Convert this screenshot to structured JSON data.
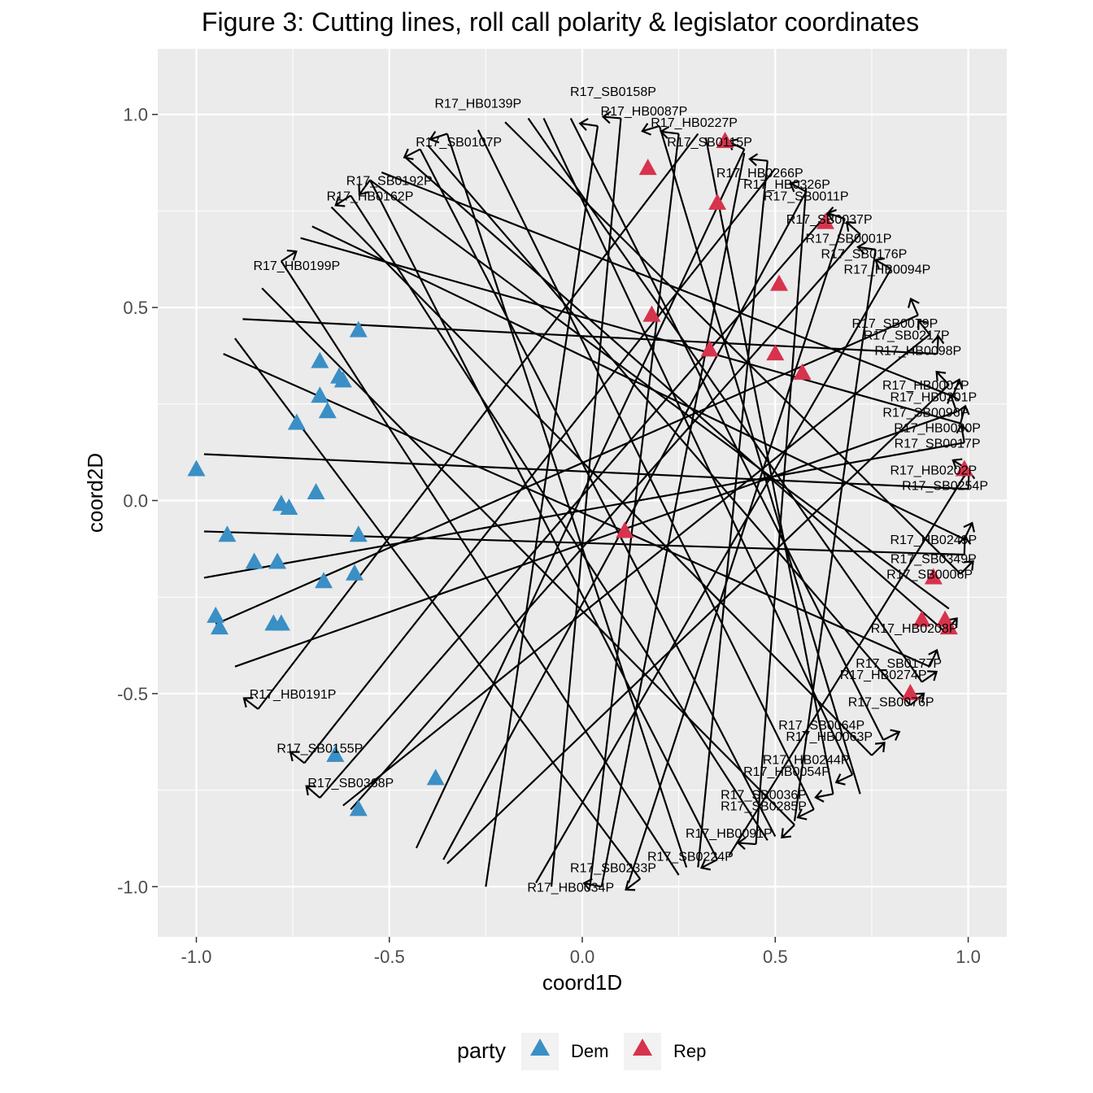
{
  "chart_data": {
    "type": "scatter",
    "title": "Figure 3: Cutting lines, roll call polarity & legislator coordinates",
    "xlabel": "coord1D",
    "ylabel": "coord2D",
    "xlim": [
      -1.1,
      1.1
    ],
    "ylim": [
      -1.13,
      1.17
    ],
    "xticks": [
      -1.0,
      -0.5,
      0.0,
      0.5,
      1.0
    ],
    "xtick_labels": [
      "-1.0",
      "-0.5",
      "0.0",
      "0.5",
      "1.0"
    ],
    "yticks": [
      -1.0,
      -0.5,
      0.0,
      0.5,
      1.0
    ],
    "ytick_labels": [
      "-1.0",
      "-0.5",
      "0.0",
      "0.5",
      "1.0"
    ],
    "grid": true,
    "legend": {
      "title": "party",
      "position": "bottom",
      "entries": [
        {
          "label": "Dem",
          "color": "#3a8fc5"
        },
        {
          "label": "Rep",
          "color": "#d7334d"
        }
      ]
    },
    "colors": {
      "panel": "#ebebeb",
      "grid": "#ffffff",
      "Dem": "#3a8fc5",
      "Rep": "#d7334d",
      "line": "#000000"
    },
    "series": [
      {
        "name": "Dem",
        "points": [
          [
            -1.0,
            0.08
          ],
          [
            -0.58,
            0.44
          ],
          [
            -0.68,
            0.36
          ],
          [
            -0.63,
            0.32
          ],
          [
            -0.62,
            0.31
          ],
          [
            -0.68,
            0.27
          ],
          [
            -0.66,
            0.23
          ],
          [
            -0.74,
            0.2
          ],
          [
            -0.69,
            0.02
          ],
          [
            -0.78,
            -0.01
          ],
          [
            -0.76,
            -0.02
          ],
          [
            -0.92,
            -0.09
          ],
          [
            -0.58,
            -0.09
          ],
          [
            -0.85,
            -0.16
          ],
          [
            -0.79,
            -0.16
          ],
          [
            -0.59,
            -0.19
          ],
          [
            -0.67,
            -0.21
          ],
          [
            -0.95,
            -0.3
          ],
          [
            -0.94,
            -0.33
          ],
          [
            -0.8,
            -0.32
          ],
          [
            -0.78,
            -0.32
          ],
          [
            -0.64,
            -0.66
          ],
          [
            -0.38,
            -0.72
          ],
          [
            -0.58,
            -0.8
          ]
        ]
      },
      {
        "name": "Rep",
        "points": [
          [
            0.37,
            0.93
          ],
          [
            0.17,
            0.86
          ],
          [
            0.35,
            0.77
          ],
          [
            0.63,
            0.72
          ],
          [
            0.51,
            0.56
          ],
          [
            0.18,
            0.48
          ],
          [
            0.33,
            0.39
          ],
          [
            0.5,
            0.38
          ],
          [
            0.57,
            0.33
          ],
          [
            0.99,
            0.08
          ],
          [
            0.11,
            -0.08
          ],
          [
            0.91,
            -0.2
          ],
          [
            0.88,
            -0.31
          ],
          [
            0.94,
            -0.31
          ],
          [
            0.95,
            -0.33
          ],
          [
            0.85,
            -0.5
          ]
        ]
      }
    ],
    "cutting_lines": [
      {
        "label": "R17_SB0158P",
        "label_at": [
          0.08,
          1.06
        ],
        "start": [
          0.04,
          0.97
        ],
        "end": [
          -0.25,
          -1.0
        ]
      },
      {
        "label": "R17_HB0139P",
        "label_at": [
          -0.27,
          1.03
        ],
        "start": [
          -0.35,
          0.95
        ],
        "end": [
          0.27,
          -0.95
        ]
      },
      {
        "label": "R17_HB0087P",
        "label_at": [
          0.16,
          1.01
        ],
        "start": [
          0.1,
          0.99
        ],
        "end": [
          -0.08,
          -1.0
        ]
      },
      {
        "label": "R17_HB0227P",
        "label_at": [
          0.29,
          0.98
        ],
        "start": [
          0.2,
          0.97
        ],
        "end": [
          0.72,
          -0.76
        ]
      },
      {
        "label": "R17_SB0107P",
        "label_at": [
          -0.32,
          0.93
        ],
        "start": [
          -0.42,
          0.91
        ],
        "end": [
          0.5,
          -0.87
        ]
      },
      {
        "label": "R17_SB0115P",
        "label_at": [
          0.33,
          0.93
        ],
        "start": [
          0.25,
          0.95
        ],
        "end": [
          0.02,
          -1.0
        ]
      },
      {
        "label": "R17_SB0192P",
        "label_at": [
          -0.5,
          0.83
        ],
        "start": [
          -0.55,
          0.83
        ],
        "end": [
          0.95,
          -0.28
        ]
      },
      {
        "label": "R17_HB0266P",
        "label_at": [
          0.46,
          0.85
        ],
        "start": [
          0.42,
          0.91
        ],
        "end": [
          -0.43,
          -0.9
        ]
      },
      {
        "label": "R17_HB0162P",
        "label_at": [
          -0.55,
          0.79
        ],
        "start": [
          -0.6,
          0.79
        ],
        "end": [
          0.48,
          -0.88
        ]
      },
      {
        "label": "R17_HB0326P",
        "label_at": [
          0.53,
          0.82
        ],
        "start": [
          0.48,
          0.88
        ],
        "end": [
          0.3,
          -0.95
        ]
      },
      {
        "label": "R17_SB0011P",
        "label_at": [
          0.58,
          0.79
        ],
        "start": [
          0.58,
          0.8
        ],
        "end": [
          -0.36,
          -0.93
        ]
      },
      {
        "label": "R17_SB0037P",
        "label_at": [
          0.64,
          0.73
        ],
        "start": [
          0.68,
          0.73
        ],
        "end": [
          0.12,
          -0.99
        ]
      },
      {
        "label": "R17_SB0001P",
        "label_at": [
          0.69,
          0.68
        ],
        "start": [
          0.72,
          0.69
        ],
        "end": [
          -0.6,
          -0.8
        ]
      },
      {
        "label": "R17_SB0176P",
        "label_at": [
          0.73,
          0.64
        ],
        "start": [
          0.76,
          0.65
        ],
        "end": [
          0.55,
          -0.83
        ]
      },
      {
        "label": "R17_HB0199P",
        "label_at": [
          -0.74,
          0.61
        ],
        "start": [
          -0.78,
          0.62
        ],
        "end": [
          0.25,
          -0.97
        ]
      },
      {
        "label": "R17_HB0094P",
        "label_at": [
          0.79,
          0.6
        ],
        "start": [
          0.8,
          0.6
        ],
        "end": [
          -0.12,
          -0.99
        ]
      },
      {
        "label": "R17_SB0079P",
        "label_at": [
          0.81,
          0.46
        ],
        "start": [
          0.87,
          0.48
        ],
        "end": [
          -0.95,
          -0.32
        ]
      },
      {
        "label": "R17_SB0217P",
        "label_at": [
          0.84,
          0.43
        ],
        "start": [
          0.9,
          0.43
        ],
        "end": [
          -0.62,
          -0.79
        ]
      },
      {
        "label": "R17_HB0098P",
        "label_at": [
          0.87,
          0.39
        ],
        "start": [
          0.92,
          0.38
        ],
        "end": [
          -0.88,
          0.47
        ]
      },
      {
        "label": "R17_HB0002P",
        "label_at": [
          0.89,
          0.3
        ],
        "start": [
          0.95,
          0.3
        ],
        "end": [
          -0.35,
          -0.94
        ]
      },
      {
        "label": "R17_HB0301P",
        "label_at": [
          0.91,
          0.27
        ],
        "start": [
          0.96,
          0.27
        ],
        "end": [
          -0.52,
          0.85
        ]
      },
      {
        "label": "R17_SB0096P",
        "label_at": [
          0.89,
          0.23
        ],
        "start": [
          0.97,
          0.23
        ],
        "end": [
          -0.9,
          -0.43
        ]
      },
      {
        "label": "R17_HB0080P",
        "label_at": [
          0.92,
          0.19
        ],
        "start": [
          0.98,
          0.2
        ],
        "end": [
          -0.73,
          0.68
        ]
      },
      {
        "label": "R17_SB0017P",
        "label_at": [
          0.92,
          0.15
        ],
        "start": [
          0.99,
          0.15
        ],
        "end": [
          -0.98,
          -0.2
        ]
      },
      {
        "label": "R17_HB0202P",
        "label_at": [
          0.91,
          0.08
        ],
        "start": [
          1.0,
          0.08
        ],
        "end": [
          0.38,
          -0.92
        ]
      },
      {
        "label": "R17_SB0254P",
        "label_at": [
          0.94,
          0.04
        ],
        "start": [
          1.0,
          0.03
        ],
        "end": [
          -0.98,
          0.12
        ]
      },
      {
        "label": "R17_HB0249P",
        "label_at": [
          0.91,
          -0.1
        ],
        "start": [
          0.99,
          -0.1
        ],
        "end": [
          -0.7,
          0.71
        ]
      },
      {
        "label": "R17_SB0349P",
        "label_at": [
          0.91,
          -0.15
        ],
        "start": [
          0.99,
          -0.14
        ],
        "end": [
          -0.98,
          -0.08
        ]
      },
      {
        "label": "R17_SB0006P",
        "label_at": [
          0.9,
          -0.19
        ],
        "start": [
          0.98,
          -0.19
        ],
        "end": [
          -0.2,
          0.98
        ]
      },
      {
        "label": "R17_HB0208P",
        "label_at": [
          0.86,
          -0.33
        ],
        "start": [
          0.94,
          -0.34
        ],
        "end": [
          -0.46,
          0.89
        ]
      },
      {
        "label": "R17_SB0177P",
        "label_at": [
          0.82,
          -0.42
        ],
        "start": [
          0.9,
          -0.43
        ],
        "end": [
          -0.93,
          0.38
        ]
      },
      {
        "label": "R17_HB0274P",
        "label_at": [
          0.78,
          -0.45
        ],
        "start": [
          0.88,
          -0.47
        ],
        "end": [
          -0.14,
          0.99
        ]
      },
      {
        "label": "R17_HB0191P",
        "label_at": [
          -0.75,
          -0.5
        ],
        "start": [
          -0.84,
          -0.54
        ],
        "end": [
          0.3,
          0.95
        ]
      },
      {
        "label": "R17_SB0076P",
        "label_at": [
          0.8,
          -0.52
        ],
        "start": [
          0.85,
          -0.53
        ],
        "end": [
          -0.4,
          0.92
        ]
      },
      {
        "label": "R17_SB0064P",
        "label_at": [
          0.62,
          -0.58
        ],
        "start": [
          0.78,
          -0.62
        ],
        "end": [
          -0.03,
          0.99
        ]
      },
      {
        "label": "R17_HB0063P",
        "label_at": [
          0.64,
          -0.61
        ],
        "start": [
          0.75,
          -0.66
        ],
        "end": [
          -0.65,
          0.76
        ]
      },
      {
        "label": "R17_SB0155P",
        "label_at": [
          -0.68,
          -0.64
        ],
        "start": [
          -0.72,
          -0.68
        ],
        "end": [
          0.5,
          0.86
        ]
      },
      {
        "label": "R17_HB0244P",
        "label_at": [
          0.58,
          -0.67
        ],
        "start": [
          0.7,
          -0.71
        ],
        "end": [
          -0.1,
          0.99
        ]
      },
      {
        "label": "R17_HB0054P",
        "label_at": [
          0.53,
          -0.7
        ],
        "start": [
          0.65,
          -0.76
        ],
        "end": [
          0.32,
          0.94
        ]
      },
      {
        "label": "R17_SB0368P",
        "label_at": [
          -0.6,
          -0.73
        ],
        "start": [
          -0.68,
          -0.77
        ],
        "end": [
          0.65,
          0.76
        ]
      },
      {
        "label": "R17_SB0036P",
        "label_at": [
          0.47,
          -0.76
        ],
        "start": [
          0.6,
          -0.8
        ],
        "end": [
          -0.27,
          0.96
        ]
      },
      {
        "label": "R17_SB0285P",
        "label_at": [
          0.47,
          -0.79
        ],
        "start": [
          0.55,
          -0.84
        ],
        "end": [
          -0.83,
          0.55
        ]
      },
      {
        "label": "R17_HB0091P",
        "label_at": [
          0.38,
          -0.86
        ],
        "start": [
          0.45,
          -0.89
        ],
        "end": [
          0.58,
          0.81
        ]
      },
      {
        "label": "R17_SB0224P",
        "label_at": [
          0.28,
          -0.92
        ],
        "start": [
          0.35,
          -0.93
        ],
        "end": [
          -0.55,
          0.83
        ]
      },
      {
        "label": "R17_SB0233P",
        "label_at": [
          0.08,
          -0.95
        ],
        "start": [
          0.15,
          -0.98
        ],
        "end": [
          -0.9,
          0.42
        ]
      },
      {
        "label": "R17_HB0034P",
        "label_at": [
          -0.03,
          -1.0
        ],
        "start": [
          0.05,
          -1.0
        ],
        "end": [
          0.42,
          0.9
        ]
      }
    ]
  }
}
